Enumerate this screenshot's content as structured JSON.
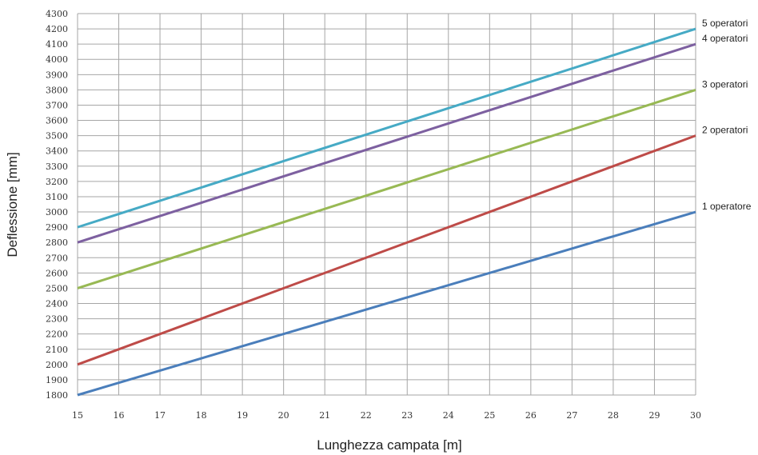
{
  "chart_data": {
    "type": "line",
    "xlabel": "Lunghezza campata [m]",
    "ylabel": "Deflessione [mm]",
    "xlim": [
      15,
      30
    ],
    "ylim": [
      1800,
      4300
    ],
    "x_ticks": [
      15,
      16,
      17,
      18,
      19,
      20,
      21,
      22,
      23,
      24,
      25,
      26,
      27,
      28,
      29,
      30
    ],
    "y_ticks": [
      1800,
      1900,
      2000,
      2100,
      2200,
      2300,
      2400,
      2500,
      2600,
      2700,
      2800,
      2900,
      3000,
      3100,
      3200,
      3300,
      3400,
      3500,
      3600,
      3700,
      3800,
      3900,
      4000,
      4100,
      4200,
      4300
    ],
    "grid": true,
    "legend": "inline-right",
    "series": [
      {
        "name": "1 operatore",
        "color": "#4a7ebb",
        "x": [
          15,
          30
        ],
        "y": [
          1800,
          3000
        ]
      },
      {
        "name": "2 operatori",
        "color": "#be4b48",
        "x": [
          15,
          30
        ],
        "y": [
          2000,
          3500
        ]
      },
      {
        "name": "3 operatori",
        "color": "#98b954",
        "x": [
          15,
          30
        ],
        "y": [
          2500,
          3800
        ]
      },
      {
        "name": "4 operatori",
        "color": "#7d60a0",
        "x": [
          15,
          30
        ],
        "y": [
          2800,
          4100
        ]
      },
      {
        "name": "5 operatori",
        "color": "#46aac5",
        "x": [
          15,
          30
        ],
        "y": [
          2900,
          4200
        ]
      }
    ]
  }
}
